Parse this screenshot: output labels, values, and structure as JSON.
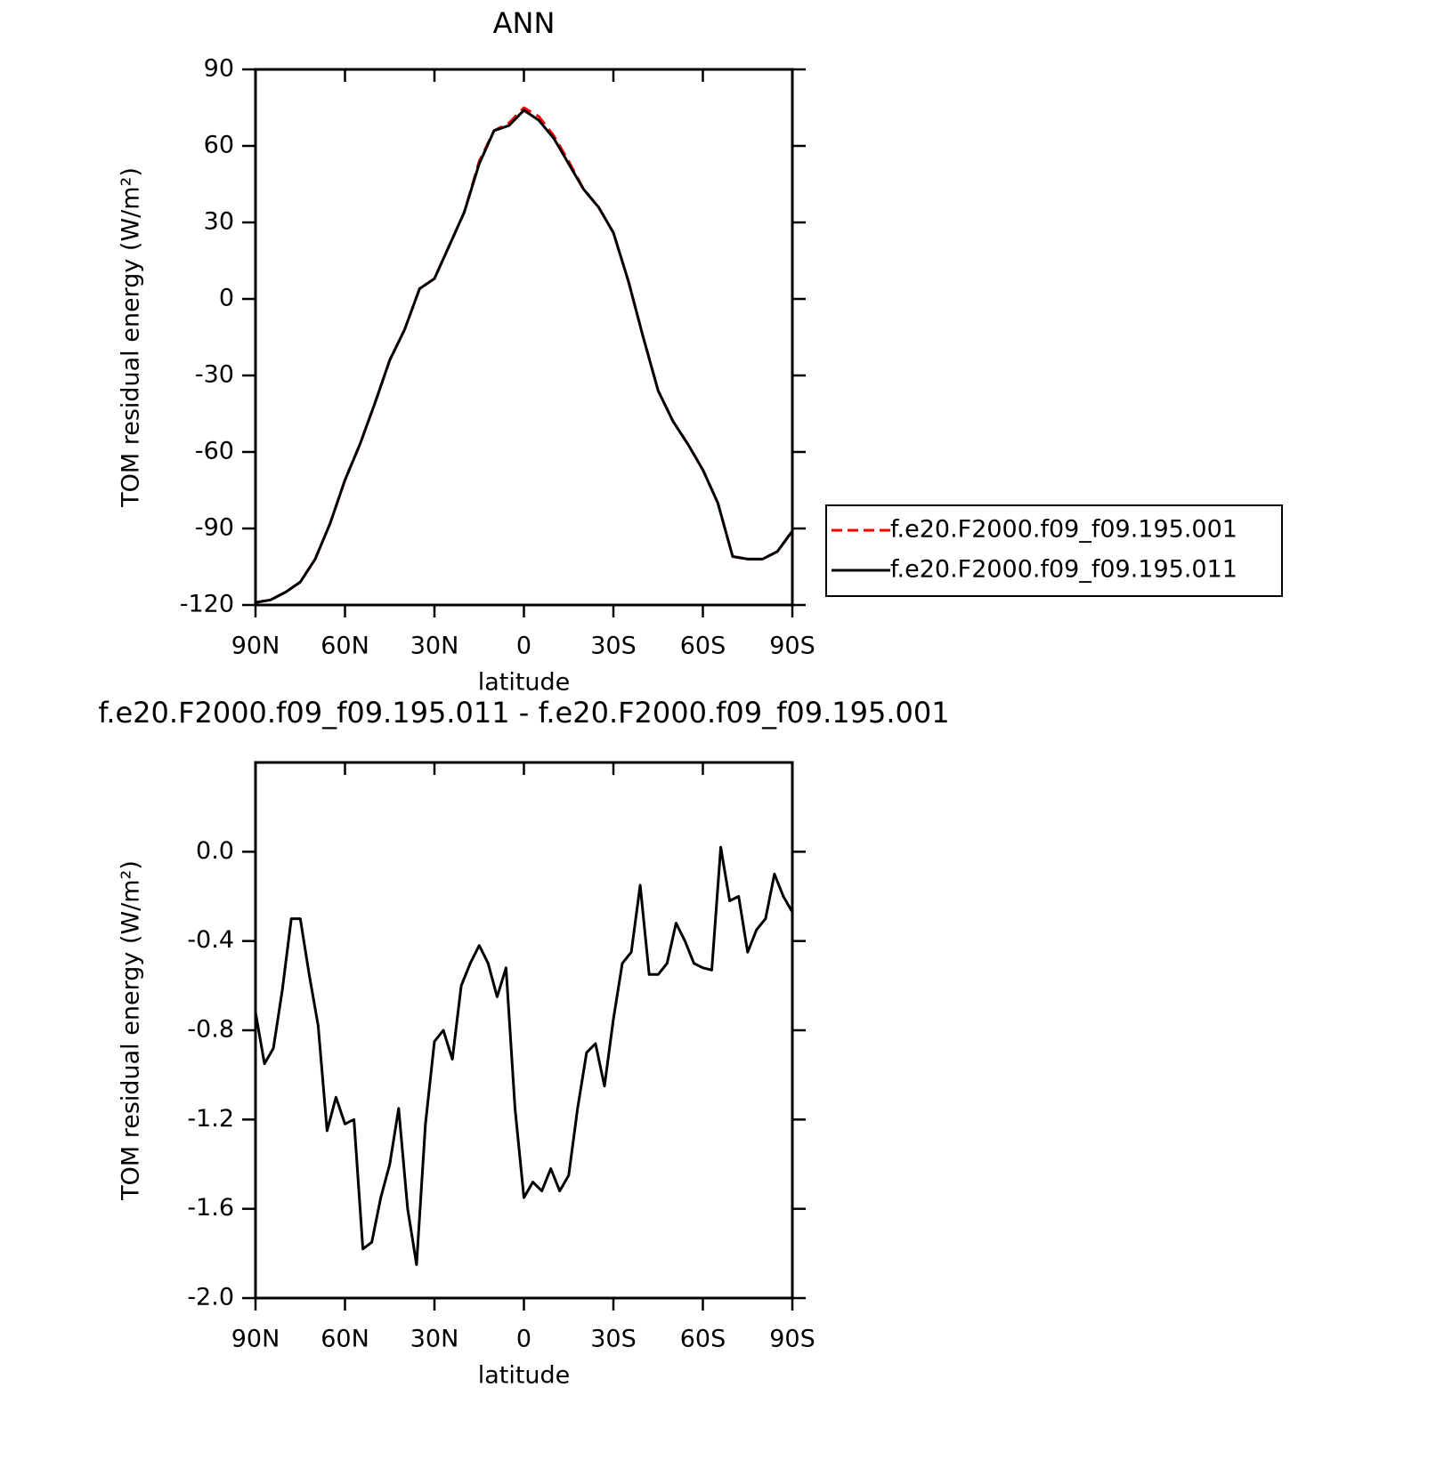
{
  "chart_data": [
    {
      "type": "line",
      "title": "ANN",
      "x_label": "latitude",
      "y_label": "TOM residual energy (W/m²)",
      "x": [
        90,
        85,
        80,
        75,
        70,
        65,
        60,
        55,
        50,
        45,
        40,
        35,
        30,
        25,
        20,
        15,
        10,
        5,
        0,
        -5,
        -10,
        -15,
        -20,
        -25,
        -30,
        -35,
        -40,
        -45,
        -50,
        -55,
        -60,
        -65,
        -70,
        -75,
        -80,
        -85,
        -90
      ],
      "series": [
        {
          "name": "f.e20.F2000.f09_f09.195.001",
          "color": "#ff0000",
          "line_style": "dashed",
          "values": [
            -119,
            -118,
            -115,
            -111,
            -102,
            -88,
            -71,
            -57,
            -41,
            -24,
            -12,
            4,
            8,
            21,
            34,
            54,
            66,
            69,
            75,
            71.5,
            64,
            54,
            43,
            36,
            26,
            7,
            -15,
            -36,
            -48,
            -57,
            -67,
            -80,
            -101,
            -102,
            -102,
            -99,
            -91
          ]
        },
        {
          "name": "f.e20.F2000.f09_f09.195.011",
          "color": "#000000",
          "line_style": "solid",
          "values": [
            -119,
            -118,
            -115,
            -111,
            -102,
            -88,
            -71,
            -57,
            -41,
            -24,
            -12,
            4,
            8,
            21,
            34,
            53,
            66,
            68,
            74,
            70,
            63,
            53,
            43,
            36,
            26,
            7,
            -15,
            -36,
            -48,
            -57,
            -67,
            -80,
            -101,
            -102,
            -102,
            -99,
            -91
          ]
        }
      ],
      "xlim": [
        90,
        -90
      ],
      "xticks": [
        {
          "value": 90,
          "label": "90N"
        },
        {
          "value": 60,
          "label": "60N"
        },
        {
          "value": 30,
          "label": "30N"
        },
        0,
        {
          "value": -30,
          "label": "30S"
        },
        {
          "value": -60,
          "label": "60S"
        },
        {
          "value": -90,
          "label": "90S"
        }
      ],
      "ylim": [
        -120,
        90
      ],
      "yticks": [
        -120,
        -90,
        -60,
        -30,
        0,
        30,
        60,
        90
      ],
      "legend": "right"
    },
    {
      "type": "line",
      "title": "f.e20.F2000.f09_f09.195.011 - f.e20.F2000.f09_f09.195.001",
      "x_label": "latitude",
      "y_label": "TOM residual energy (W/m²)",
      "x": [
        90,
        87,
        84,
        81,
        78,
        75,
        72,
        69,
        66,
        63,
        60,
        57,
        54,
        51,
        48,
        45,
        42,
        39,
        36,
        33,
        30,
        27,
        24,
        21,
        18,
        15,
        12,
        9,
        6,
        3,
        0,
        -3,
        -6,
        -9,
        -12,
        -15,
        -18,
        -21,
        -24,
        -27,
        -30,
        -33,
        -36,
        -39,
        -42,
        -45,
        -48,
        -51,
        -54,
        -57,
        -60,
        -63,
        -66,
        -69,
        -72,
        -75,
        -78,
        -81,
        -84,
        -87,
        -90
      ],
      "values": [
        -0.72,
        -0.95,
        -0.88,
        -0.62,
        -0.3,
        -0.3,
        -0.55,
        -0.78,
        -1.25,
        -1.1,
        -1.22,
        -1.2,
        -1.78,
        -1.75,
        -1.55,
        -1.4,
        -1.15,
        -1.6,
        -1.85,
        -1.22,
        -0.85,
        -0.8,
        -0.93,
        -0.6,
        -0.5,
        -0.42,
        -0.5,
        -0.65,
        -0.52,
        -1.15,
        -1.55,
        -1.48,
        -1.52,
        -1.42,
        -1.52,
        -1.45,
        -1.15,
        -0.9,
        -0.86,
        -1.05,
        -0.75,
        -0.5,
        -0.45,
        -0.15,
        -0.55,
        -0.55,
        -0.5,
        -0.32,
        -0.4,
        -0.5,
        -0.52,
        -0.53,
        0.02,
        -0.22,
        -0.2,
        -0.45,
        -0.35,
        -0.3,
        -0.1,
        -0.2,
        -0.27
      ],
      "color": "#000000",
      "xlim": [
        90,
        -90
      ],
      "xticks": [
        {
          "value": 90,
          "label": "90N"
        },
        {
          "value": 60,
          "label": "60N"
        },
        {
          "value": 30,
          "label": "30N"
        },
        0,
        {
          "value": -30,
          "label": "30S"
        },
        {
          "value": -60,
          "label": "60S"
        },
        {
          "value": -90,
          "label": "90S"
        }
      ],
      "ylim": [
        -2.0,
        0.4
      ],
      "yticks": [
        {
          "value": -2,
          "label": "-2.0"
        },
        -1.6,
        -1.2,
        -0.8,
        -0.4,
        {
          "value": 0,
          "label": "0.0"
        }
      ]
    }
  ]
}
